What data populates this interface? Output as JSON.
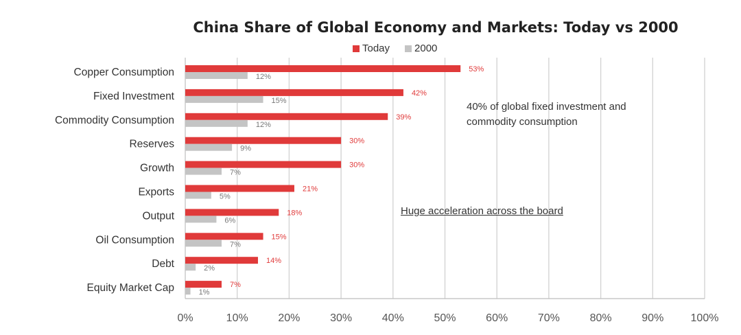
{
  "chart_data": {
    "type": "bar",
    "title": "China Share of Global Economy and Markets: Today vs 2000",
    "categories": [
      "Copper Consumption",
      "Fixed Investment",
      "Commodity Consumption",
      "Reserves",
      "Growth",
      "Exports",
      "Output",
      "Oil Consumption",
      "Debt",
      "Equity Market Cap"
    ],
    "series": [
      {
        "name": "Today",
        "color": "#e03a3a",
        "values": [
          53,
          42,
          39,
          30,
          30,
          21,
          18,
          15,
          14,
          7
        ],
        "labels": [
          "53%",
          "42%",
          "39%",
          "30%",
          "30%",
          "21%",
          "18%",
          "15%",
          "14%",
          "7%"
        ]
      },
      {
        "name": "2000",
        "color": "#c4c4c4",
        "values": [
          12,
          15,
          12,
          9,
          7,
          5,
          6,
          7,
          2,
          1
        ],
        "labels": [
          "12%",
          "15%",
          "12%",
          "9%",
          "7%",
          "5%",
          "6%",
          "7%",
          "2%",
          "1%"
        ]
      }
    ],
    "xlim": [
      0,
      100
    ],
    "xticks": [
      "0%",
      "10%",
      "20%",
      "30%",
      "40%",
      "50%",
      "60%",
      "70%",
      "80%",
      "90%",
      "100%"
    ],
    "grid": true,
    "legend": "top",
    "annotations": [
      "40% of global fixed investment and commodity consumption",
      "Huge acceleration across the board"
    ]
  }
}
